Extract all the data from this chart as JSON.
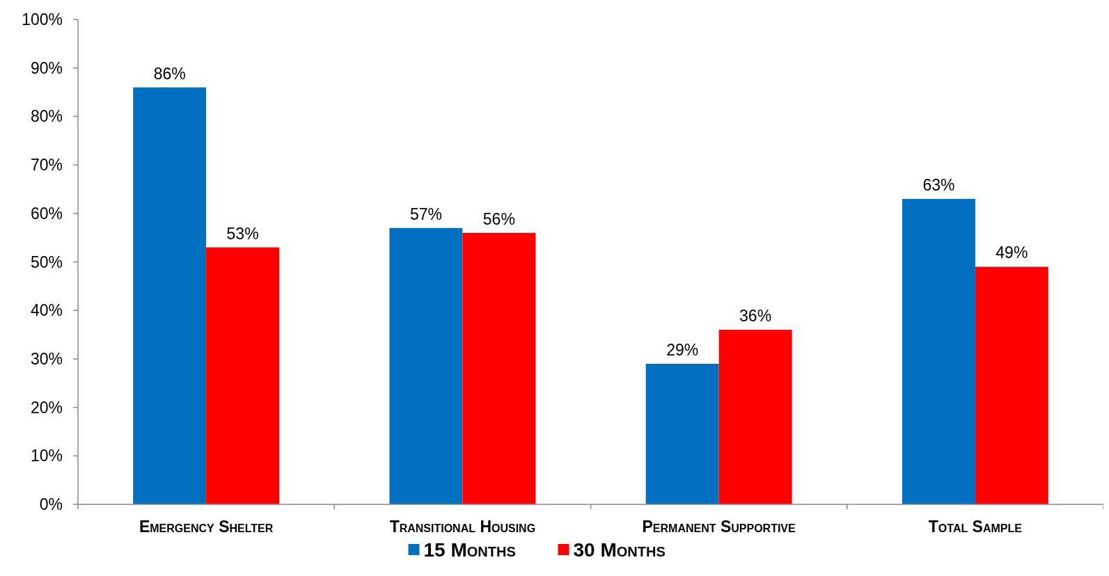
{
  "chart_data": {
    "type": "bar",
    "categories": [
      "Emergency Shelter",
      "Transitional Housing",
      "Permanent Supportive",
      "Total Sample"
    ],
    "series": [
      {
        "name": "15 Months",
        "color": "#0070c0",
        "values": [
          86,
          57,
          29,
          63
        ]
      },
      {
        "name": "30 Months",
        "color": "#ff0000",
        "values": [
          53,
          56,
          36,
          49
        ]
      }
    ],
    "ylim": [
      0,
      100
    ],
    "yticks": [
      {
        "value": 0,
        "label": "0%"
      },
      {
        "value": 10,
        "label": "10%"
      },
      {
        "value": 20,
        "label": "20%"
      },
      {
        "value": 30,
        "label": "30%"
      },
      {
        "value": 40,
        "label": "40%"
      },
      {
        "value": 50,
        "label": "50%"
      },
      {
        "value": 60,
        "label": "60%"
      },
      {
        "value": 70,
        "label": "70%"
      },
      {
        "value": 80,
        "label": "80%"
      },
      {
        "value": 90,
        "label": "90%"
      },
      {
        "value": 100,
        "label": "100%"
      }
    ],
    "value_labels": [
      [
        "86%",
        "57%",
        "29%",
        "63%"
      ],
      [
        "53%",
        "56%",
        "36%",
        "49%"
      ]
    ],
    "legend": "bottom",
    "grid": false
  }
}
